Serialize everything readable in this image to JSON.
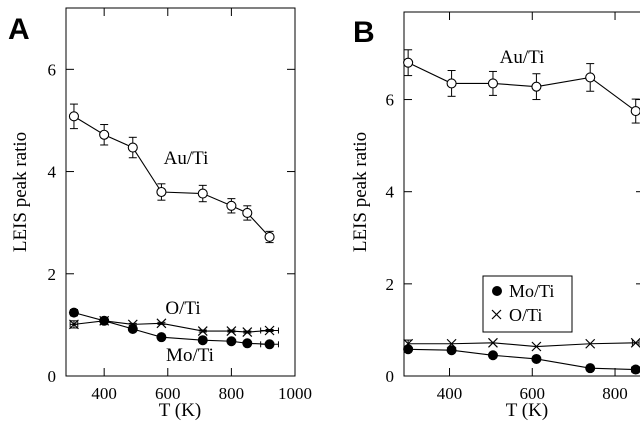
{
  "chart_data": [
    {
      "type": "scatter",
      "panel_label": "A",
      "xlabel": "T (K)",
      "ylabel": "LEIS peak ratio",
      "xlim": [
        280,
        1000
      ],
      "ylim": [
        0,
        7.2
      ],
      "xticks": [
        400,
        600,
        800,
        1000
      ],
      "yticks": [
        0,
        2,
        4,
        6
      ],
      "legend": "none",
      "series": [
        {
          "name": "Au/Ti",
          "marker": "open-circle",
          "x": [
            305,
            400,
            490,
            580,
            710,
            800,
            850,
            920
          ],
          "y": [
            5.08,
            4.72,
            4.47,
            3.6,
            3.57,
            3.33,
            3.19,
            2.72
          ],
          "err": [
            0.24,
            0.2,
            0.2,
            0.16,
            0.16,
            0.14,
            0.14,
            0.11
          ]
        },
        {
          "name": "O/Ti",
          "marker": "cross",
          "x": [
            305,
            400,
            490,
            580,
            710,
            800,
            850,
            920
          ],
          "y": [
            1.01,
            1.08,
            1.01,
            1.03,
            0.88,
            0.88,
            0.86,
            0.89
          ],
          "err": [
            0.07,
            0.04,
            0.02,
            0.02,
            0.02,
            0.02,
            0.02,
            0.02
          ],
          "xerr": [
            12,
            0,
            0,
            0,
            0,
            0,
            0,
            28
          ]
        },
        {
          "name": "Mo/Ti",
          "marker": "filled-circle",
          "x": [
            305,
            400,
            490,
            580,
            710,
            800,
            850,
            920
          ],
          "y": [
            1.24,
            1.08,
            0.92,
            0.76,
            0.7,
            0.68,
            0.64,
            0.62
          ],
          "err": [
            0.06,
            0.04,
            0.03,
            0.03,
            0.03,
            0.03,
            0.03,
            0.03
          ],
          "xerr": [
            0,
            0,
            0,
            0,
            0,
            0,
            0,
            28
          ]
        }
      ],
      "annotations": [
        {
          "text": "Au/Ti",
          "x": 750,
          "y": 4.2
        },
        {
          "text": "O/Ti",
          "x": 760,
          "y": 1.15
        },
        {
          "text": "Mo/Ti",
          "x": 720,
          "y": 0.22
        }
      ]
    },
    {
      "type": "scatter",
      "panel_label": "B",
      "xlabel": "T (K)",
      "ylabel": "LEIS peak ratio",
      "xlim": [
        290,
        870
      ],
      "ylim": [
        0,
        7.9
      ],
      "xticks": [
        400,
        600,
        800
      ],
      "yticks": [
        0,
        2,
        4,
        6
      ],
      "legend": "lower-right",
      "series": [
        {
          "name": "Au/Ti",
          "marker": "open-circle",
          "x": [
            300,
            405,
            505,
            610,
            740,
            850
          ],
          "y": [
            6.8,
            6.35,
            6.35,
            6.28,
            6.48,
            5.75
          ],
          "err": [
            0.28,
            0.28,
            0.26,
            0.28,
            0.3,
            0.26
          ]
        },
        {
          "name": "Mo/Ti",
          "marker": "filled-circle",
          "x": [
            300,
            405,
            505,
            610,
            740,
            850
          ],
          "y": [
            0.58,
            0.56,
            0.45,
            0.37,
            0.17,
            0.14
          ],
          "xerr": [
            0,
            0,
            0,
            0,
            0,
            10
          ]
        },
        {
          "name": "O/Ti",
          "marker": "cross",
          "x": [
            300,
            405,
            505,
            610,
            740,
            850
          ],
          "y": [
            0.7,
            0.7,
            0.72,
            0.64,
            0.7,
            0.72
          ],
          "err": [
            0.08,
            0,
            0,
            0,
            0,
            0
          ],
          "xerr": [
            0,
            0,
            0,
            0,
            0,
            8
          ]
        }
      ],
      "annotations": [
        {
          "text": "Au/Ti",
          "x": 505,
          "y": 7.0
        }
      ]
    }
  ]
}
